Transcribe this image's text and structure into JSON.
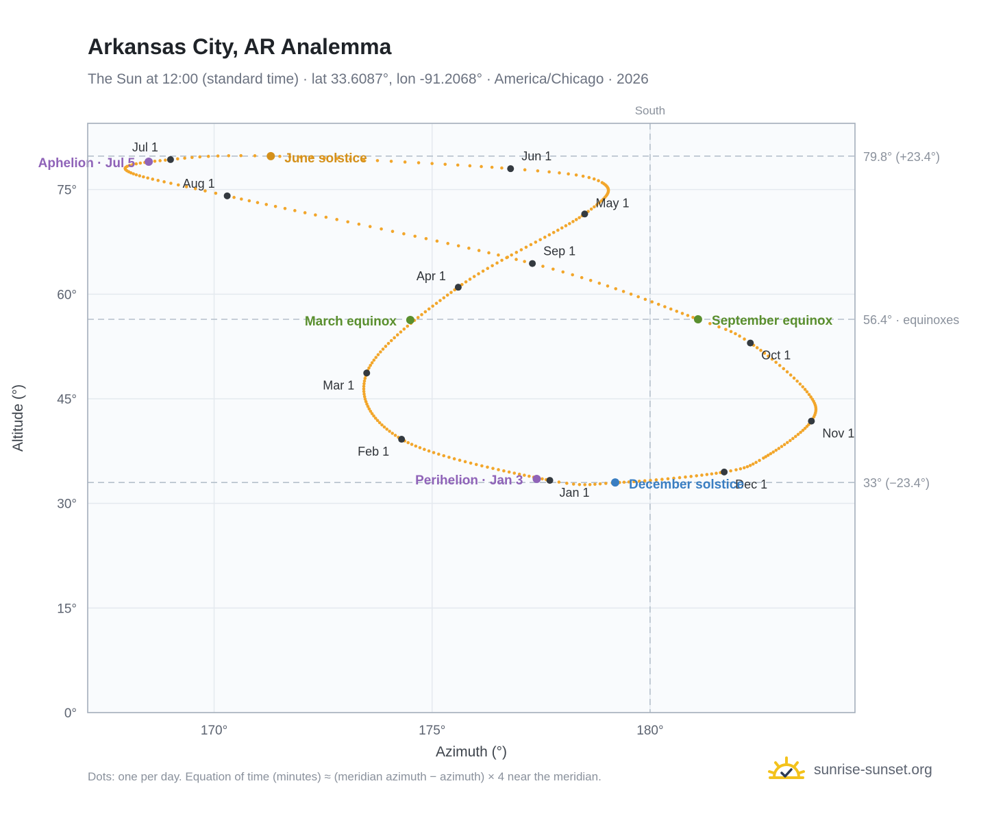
{
  "header": {
    "title": "Arkansas City, AR Analemma",
    "subtitle": "The Sun at 12:00 (standard time) · lat 33.6087°, lon -91.2068° · America/Chicago · 2026"
  },
  "footer": {
    "note": "Dots: one per day. Equation of time (minutes) ≈ (meridian azimuth − azimuth) × 4 near the meridian.",
    "brand": "sunrise-sunset.org",
    "brand_icon": "sun-check-icon"
  },
  "colors": {
    "curve": "#f2a62b",
    "month_dot": "#343a40",
    "june_solstice": "#d4901a",
    "december_solstice": "#3a7ec2",
    "equinox": "#5a8f2e",
    "apsis": "#8f63b8",
    "grid": "#e4e9ef",
    "plot_bg": "#f9fbfd",
    "border": "#a3adba",
    "reference_line": "#b5c0cb"
  },
  "chart_data": {
    "type": "scatter",
    "xlabel": "Azimuth (°)",
    "ylabel": "Altitude (°)",
    "xlim": [
      167.1,
      184.7
    ],
    "ylim": [
      0,
      84.5
    ],
    "xticks": [
      170,
      175,
      180
    ],
    "xtick_labels": [
      "170°",
      "175°",
      "180°"
    ],
    "yticks": [
      0,
      15,
      30,
      45,
      60,
      75
    ],
    "ytick_labels": [
      "0°",
      "15°",
      "30°",
      "45°",
      "60°",
      "75°"
    ],
    "grid": true,
    "south_line": {
      "azimuth": 180,
      "label": "South"
    },
    "reference_lines": [
      {
        "altitude": 79.8,
        "label": "79.8° (+23.4°)"
      },
      {
        "altitude": 56.4,
        "label": "56.4° · equinoxes"
      },
      {
        "altitude": 33.0,
        "label": "33° (−23.4°)"
      }
    ],
    "curve_control_points": [
      {
        "day": 1,
        "az": 177.7,
        "alt": 33.3
      },
      {
        "day": 32,
        "az": 174.3,
        "alt": 39.2
      },
      {
        "day": 60,
        "az": 173.5,
        "alt": 48.7
      },
      {
        "day": 91,
        "az": 175.6,
        "alt": 61.0
      },
      {
        "day": 121,
        "az": 178.5,
        "alt": 71.5
      },
      {
        "day": 141,
        "az": 178.9,
        "alt": 76.0
      },
      {
        "day": 152,
        "az": 176.8,
        "alt": 78.0
      },
      {
        "day": 172,
        "az": 171.3,
        "alt": 79.8
      },
      {
        "day": 182,
        "az": 169.0,
        "alt": 79.3
      },
      {
        "day": 196,
        "az": 168.0,
        "alt": 77.7
      },
      {
        "day": 213,
        "az": 170.3,
        "alt": 74.1
      },
      {
        "day": 244,
        "az": 177.3,
        "alt": 64.4
      },
      {
        "day": 266,
        "az": 181.1,
        "alt": 56.4
      },
      {
        "day": 274,
        "az": 182.3,
        "alt": 53.0
      },
      {
        "day": 291,
        "az": 183.6,
        "alt": 46.0
      },
      {
        "day": 305,
        "az": 183.7,
        "alt": 41.8
      },
      {
        "day": 325,
        "az": 182.6,
        "alt": 36.5
      },
      {
        "day": 335,
        "az": 181.7,
        "alt": 34.5
      },
      {
        "day": 355,
        "az": 179.3,
        "alt": 33.0
      },
      {
        "day": 366,
        "az": 177.7,
        "alt": 33.3
      }
    ],
    "month_markers": [
      {
        "label": "Jan 1",
        "az": 177.7,
        "alt": 33.3
      },
      {
        "label": "Feb 1",
        "az": 174.3,
        "alt": 39.2
      },
      {
        "label": "Mar 1",
        "az": 173.5,
        "alt": 48.7
      },
      {
        "label": "Apr 1",
        "az": 175.6,
        "alt": 61.0
      },
      {
        "label": "May 1",
        "az": 178.5,
        "alt": 71.5
      },
      {
        "label": "Jun 1",
        "az": 176.8,
        "alt": 78.0
      },
      {
        "label": "Jul 1",
        "az": 169.0,
        "alt": 79.3
      },
      {
        "label": "Aug 1",
        "az": 170.3,
        "alt": 74.1
      },
      {
        "label": "Sep 1",
        "az": 177.3,
        "alt": 64.4
      },
      {
        "label": "Oct 1",
        "az": 182.3,
        "alt": 53.0
      },
      {
        "label": "Nov 1",
        "az": 183.7,
        "alt": 41.8
      },
      {
        "label": "Dec 1",
        "az": 181.7,
        "alt": 34.5
      }
    ],
    "events": [
      {
        "label": "June solstice",
        "az": 171.3,
        "alt": 79.8,
        "kind": "june_solstice"
      },
      {
        "label": "December solstice",
        "az": 179.2,
        "alt": 33.0,
        "kind": "december_solstice"
      },
      {
        "label": "March equinox",
        "az": 174.5,
        "alt": 56.3,
        "kind": "equinox"
      },
      {
        "label": "September equinox",
        "az": 181.1,
        "alt": 56.4,
        "kind": "equinox"
      },
      {
        "label": "Aphelion · Jul 5",
        "az": 168.5,
        "alt": 79.0,
        "kind": "apsis"
      },
      {
        "label": "Perihelion · Jan 3",
        "az": 177.4,
        "alt": 33.5,
        "kind": "apsis"
      }
    ]
  }
}
